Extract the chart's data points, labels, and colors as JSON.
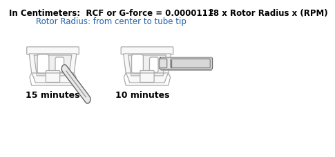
{
  "title_line1": "In Centimeters:  RCF or G-force = 0.00001118 x Rotor Radius x (RPM)",
  "title_line1_super": "2",
  "title_line2": "Rotor Radius: from center to tube tip",
  "label_left": "15 minutes",
  "label_right": "10 minutes",
  "title_color": "#000000",
  "subtitle_color": "#2060a8",
  "label_color": "#000000",
  "bg_color": "#ffffff",
  "rotor_edge": "#aaaaaa",
  "rotor_fill": "#f8f8f8",
  "tube_edge": "#666666",
  "tube_fill": "#e8e8e8"
}
